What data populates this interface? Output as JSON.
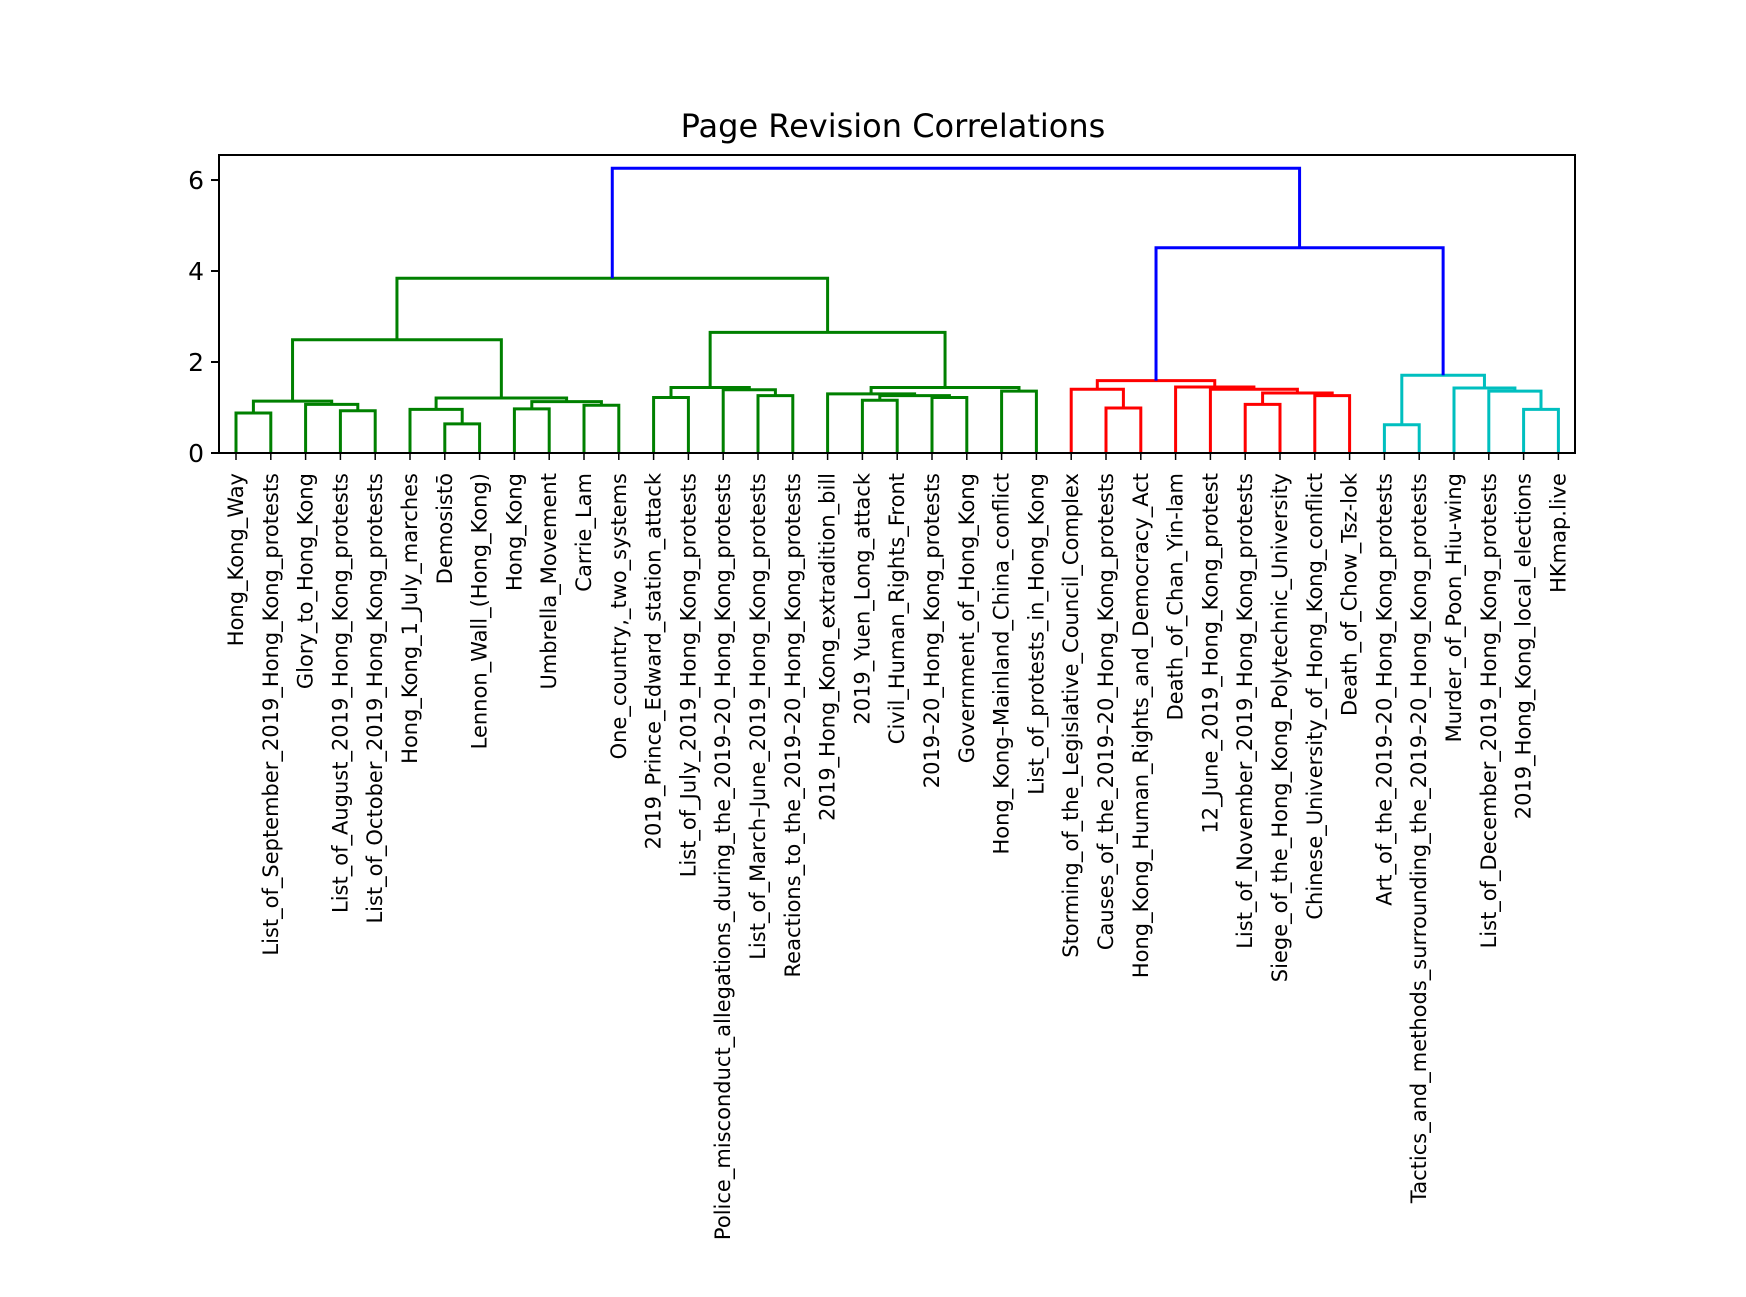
{
  "chart_data": {
    "type": "dendrogram",
    "title": "Page Revision Correlations",
    "xlabel": "",
    "ylabel": "",
    "ylim": [
      0,
      6.55
    ],
    "yticks": [
      0,
      2,
      4,
      6
    ],
    "grid": false,
    "colors": {
      "upper": "#0000ff",
      "cluster_green": "#008000",
      "cluster_red": "#ff0000",
      "cluster_cyan": "#00bfbf",
      "axis": "#000000"
    },
    "leaves": [
      "Hong_Kong_Way",
      "List_of_September_2019_Hong_Kong_protests",
      "Glory_to_Hong_Kong",
      "List_of_August_2019_Hong_Kong_protests",
      "List_of_October_2019_Hong_Kong_protests",
      "Hong_Kong_1_July_marches",
      "Demosistō",
      "Lennon_Wall_(Hong_Kong)",
      "Hong_Kong",
      "Umbrella_Movement",
      "Carrie_Lam",
      "One_country,_two_systems",
      "2019_Prince_Edward_station_attack",
      "List_of_July_2019_Hong_Kong_protests",
      "Police_misconduct_allegations_during_the_2019–20_Hong_Kong_protests",
      "List_of_March–June_2019_Hong_Kong_protests",
      "Reactions_to_the_2019–20_Hong_Kong_protests",
      "2019_Hong_Kong_extradition_bill",
      "2019_Yuen_Long_attack",
      "Civil_Human_Rights_Front",
      "2019–20_Hong_Kong_protests",
      "Government_of_Hong_Kong",
      "Hong_Kong–Mainland_China_conflict",
      "List_of_protests_in_Hong_Kong",
      "Storming_of_the_Legislative_Council_Complex",
      "Causes_of_the_2019–20_Hong_Kong_protests",
      "Hong_Kong_Human_Rights_and_Democracy_Act",
      "Death_of_Chan_Yin-lam",
      "12_June_2019_Hong_Kong_protest",
      "List_of_November_2019_Hong_Kong_protests",
      "Siege_of_the_Hong_Kong_Polytechnic_University",
      "Chinese_University_of_Hong_Kong_conflict",
      "Death_of_Chow_Tsz-lok",
      "Art_of_the_2019–20_Hong_Kong_protests",
      "Tactics_and_methods_surrounding_the_2019–20_Hong_Kong_protests",
      "Murder_of_Poon_Hiu-wing",
      "List_of_December_2019_Hong_Kong_protests",
      "2019_Hong_Kong_local_elections",
      "HKmap.live"
    ],
    "merges": [
      {
        "a": 0,
        "b": 1,
        "height": 0.88,
        "color": "cluster_green"
      },
      {
        "a": 3,
        "b": 4,
        "height": 0.93,
        "color": "cluster_green"
      },
      {
        "a": 2,
        "b": "m1",
        "height": 1.07,
        "color": "cluster_green"
      },
      {
        "a": "m0",
        "b": "m2",
        "height": 1.14,
        "color": "cluster_green"
      },
      {
        "a": 6,
        "b": 7,
        "height": 0.64,
        "color": "cluster_green"
      },
      {
        "a": 5,
        "b": "m4",
        "height": 0.96,
        "color": "cluster_green"
      },
      {
        "a": 8,
        "b": 9,
        "height": 0.97,
        "color": "cluster_green"
      },
      {
        "a": 10,
        "b": 11,
        "height": 1.05,
        "color": "cluster_green"
      },
      {
        "a": "m6",
        "b": "m7",
        "height": 1.13,
        "color": "cluster_green"
      },
      {
        "a": "m5",
        "b": "m8",
        "height": 1.21,
        "color": "cluster_green"
      },
      {
        "a": "m3",
        "b": "m9",
        "height": 2.49,
        "color": "cluster_green"
      },
      {
        "a": 15,
        "b": 16,
        "height": 1.26,
        "color": "cluster_green"
      },
      {
        "a": 14,
        "b": "m11",
        "height": 1.39,
        "color": "cluster_green"
      },
      {
        "a": 12,
        "b": 13,
        "height": 1.22,
        "color": "cluster_green"
      },
      {
        "a": "m13",
        "b": "m12",
        "height": 1.44,
        "color": "cluster_green"
      },
      {
        "a": 18,
        "b": 19,
        "height": 1.16,
        "color": "cluster_green"
      },
      {
        "a": 20,
        "b": 21,
        "height": 1.22,
        "color": "cluster_green"
      },
      {
        "a": "m15",
        "b": "m16",
        "height": 1.26,
        "color": "cluster_green"
      },
      {
        "a": 17,
        "b": "m17",
        "height": 1.3,
        "color": "cluster_green"
      },
      {
        "a": 22,
        "b": 23,
        "height": 1.36,
        "color": "cluster_green"
      },
      {
        "a": "m18",
        "b": "m19",
        "height": 1.44,
        "color": "cluster_green"
      },
      {
        "a": "m14",
        "b": "m20",
        "height": 2.65,
        "color": "cluster_green"
      },
      {
        "a": "m10",
        "b": "m21",
        "height": 3.84,
        "color": "cluster_green"
      },
      {
        "a": 25,
        "b": 26,
        "height": 0.99,
        "color": "cluster_red"
      },
      {
        "a": 24,
        "b": "m23",
        "height": 1.4,
        "color": "cluster_red"
      },
      {
        "a": 29,
        "b": 30,
        "height": 1.07,
        "color": "cluster_red"
      },
      {
        "a": 31,
        "b": 32,
        "height": 1.26,
        "color": "cluster_red"
      },
      {
        "a": "m25",
        "b": "m26",
        "height": 1.32,
        "color": "cluster_red"
      },
      {
        "a": 28,
        "b": "m27",
        "height": 1.4,
        "color": "cluster_red"
      },
      {
        "a": 27,
        "b": "m28",
        "height": 1.45,
        "color": "cluster_red"
      },
      {
        "a": "m24",
        "b": "m29",
        "height": 1.59,
        "color": "cluster_red"
      },
      {
        "a": 33,
        "b": 34,
        "height": 0.62,
        "color": "cluster_cyan"
      },
      {
        "a": 37,
        "b": 38,
        "height": 0.96,
        "color": "cluster_cyan"
      },
      {
        "a": 36,
        "b": "m32",
        "height": 1.36,
        "color": "cluster_cyan"
      },
      {
        "a": 35,
        "b": "m33",
        "height": 1.43,
        "color": "cluster_cyan"
      },
      {
        "a": "m31",
        "b": "m34",
        "height": 1.71,
        "color": "cluster_cyan"
      },
      {
        "a": "m30",
        "b": "m35",
        "height": 4.51,
        "color": "upper"
      },
      {
        "a": "m22",
        "b": "m36",
        "height": 6.26,
        "color": "upper"
      }
    ]
  }
}
